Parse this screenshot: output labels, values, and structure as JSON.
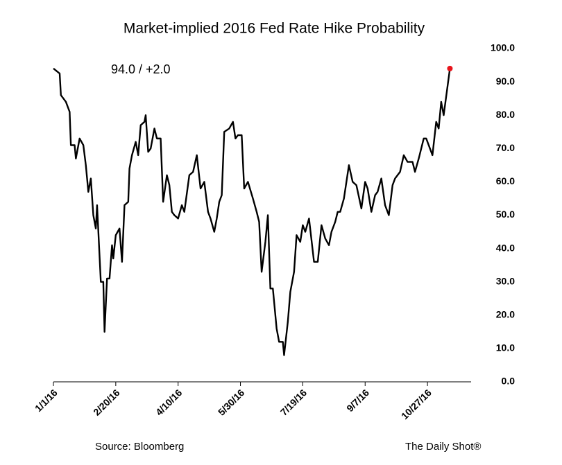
{
  "chart_data": {
    "type": "line",
    "title": "Market-implied 2016 Fed Rate Hike Probability",
    "annotation": "94.0  /  +2.0",
    "source": "Source: Bloomberg",
    "credit": "The Daily Shot®",
    "x": [
      "1/1/16",
      "1/6/16",
      "1/7/16",
      "1/11/16",
      "1/14/16",
      "1/15/16",
      "1/18/16",
      "1/19/16",
      "1/22/16",
      "1/25/16",
      "1/27/16",
      "1/29/16",
      "1/31/16",
      "2/2/16",
      "2/4/16",
      "2/5/16",
      "2/8/16",
      "2/10/16",
      "2/11/16",
      "2/13/16",
      "2/15/16",
      "2/17/16",
      "2/18/16",
      "2/20/16",
      "2/23/16",
      "2/25/16",
      "2/27/16",
      "3/1/16",
      "3/2/16",
      "3/4/16",
      "3/7/16",
      "3/9/16",
      "3/11/16",
      "3/14/16",
      "3/15/16",
      "3/17/16",
      "3/19/16",
      "3/22/16",
      "3/24/16",
      "3/27/16",
      "3/29/16",
      "4/1/16",
      "4/3/16",
      "4/5/16",
      "4/7/16",
      "4/10/16",
      "4/13/16",
      "4/15/16",
      "4/19/16",
      "4/22/16",
      "4/25/16",
      "4/28/16",
      "5/1/16",
      "5/4/16",
      "5/6/16",
      "5/9/16",
      "5/11/16",
      "5/13/16",
      "5/15/16",
      "5/17/16",
      "5/21/16",
      "5/24/16",
      "5/26/16",
      "5/28/16",
      "5/31/16",
      "6/2/16",
      "6/5/16",
      "6/9/16",
      "6/12/16",
      "6/14/16",
      "6/16/16",
      "6/19/16",
      "6/21/16",
      "6/23/16",
      "6/25/16",
      "6/28/16",
      "6/30/16",
      "7/3/16",
      "7/4/16",
      "7/7/16",
      "7/9/16",
      "7/12/16",
      "7/14/16",
      "7/17/16",
      "7/19/16",
      "7/21/16",
      "7/24/16",
      "7/28/16",
      "7/31/16",
      "8/3/16",
      "8/6/16",
      "8/9/16",
      "8/11/16",
      "8/14/16",
      "8/16/16",
      "8/18/16",
      "8/21/16",
      "8/25/16",
      "8/28/16",
      "8/31/16",
      "9/4/16",
      "9/7/16",
      "9/9/16",
      "9/12/16",
      "9/15/16",
      "9/17/16",
      "9/20/16",
      "9/23/16",
      "9/26/16",
      "9/29/16",
      "10/1/16",
      "10/5/16",
      "10/8/16",
      "10/11/16",
      "10/15/16",
      "10/17/16",
      "10/20/16",
      "10/24/16",
      "10/26/16",
      "10/29/16",
      "10/31/16",
      "11/3/16",
      "11/5/16",
      "11/7/16",
      "11/9/16",
      "11/14/16"
    ],
    "series": [
      {
        "name": "Rate hike probability",
        "color": "#000000",
        "values": [
          94,
          92.5,
          86,
          84,
          81,
          71,
          71,
          67,
          73,
          71,
          65,
          57,
          61,
          50,
          46,
          53,
          30,
          30,
          15,
          31,
          31,
          41,
          37,
          44,
          46,
          36,
          53,
          54,
          64,
          68,
          72,
          68,
          77,
          78,
          80,
          69,
          70,
          76,
          73,
          73,
          54,
          62,
          59,
          51,
          50,
          49,
          53,
          51,
          62,
          63,
          68,
          58,
          60,
          51,
          49,
          45,
          49,
          54,
          56,
          75,
          76,
          78,
          73,
          74,
          74,
          58,
          60,
          55,
          51,
          48,
          33,
          42,
          50,
          28,
          28,
          16,
          12,
          12,
          8,
          18,
          27,
          33,
          44,
          42,
          47,
          45,
          49,
          36,
          36,
          47,
          43,
          41,
          45,
          48,
          51,
          51,
          55,
          65,
          60,
          59,
          52,
          60,
          58,
          51,
          56,
          57,
          61,
          53,
          50,
          59,
          61,
          63,
          68,
          66,
          66,
          63,
          67,
          73,
          73,
          70,
          68,
          78,
          76,
          84,
          80,
          94
        ]
      }
    ],
    "marker_color": "#e8141b",
    "xlim": [
      "1/1/16",
      "12/1/16"
    ],
    "xticks": [
      "1/1/16",
      "2/20/16",
      "4/10/16",
      "5/30/16",
      "7/19/16",
      "9/7/16",
      "10/27/16"
    ],
    "ylim": [
      0,
      100
    ],
    "yticks": [
      {
        "value": 0,
        "label": "0.0"
      },
      {
        "value": 10,
        "label": "10.0"
      },
      {
        "value": 20,
        "label": "20.0"
      },
      {
        "value": 30,
        "label": "30.0"
      },
      {
        "value": 40,
        "label": "40.0"
      },
      {
        "value": 50,
        "label": "50.0"
      },
      {
        "value": 60,
        "label": "60.0"
      },
      {
        "value": 70,
        "label": "70.0"
      },
      {
        "value": 80,
        "label": "80.0"
      },
      {
        "value": 90,
        "label": "90.0"
      },
      {
        "value": 100,
        "label": "100.0"
      }
    ],
    "grid": false
  }
}
